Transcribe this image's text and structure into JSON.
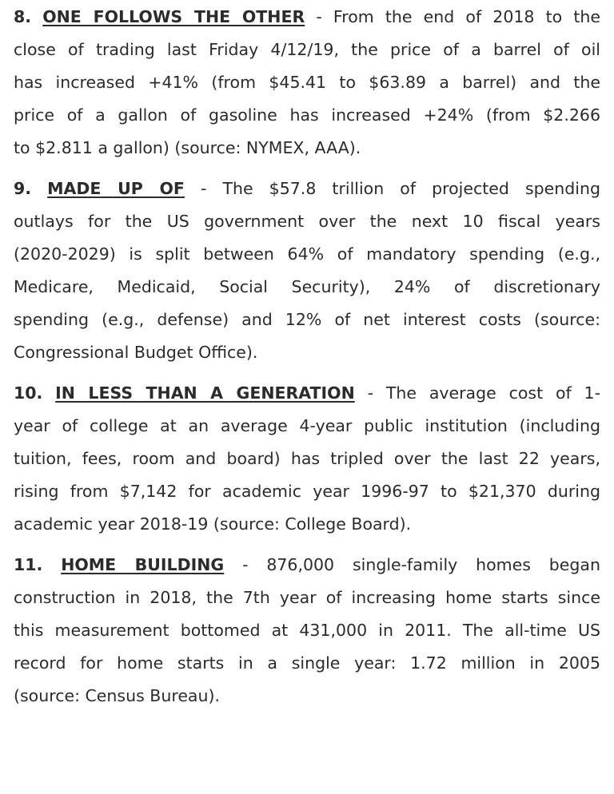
{
  "items": [
    {
      "number": "8.",
      "heading": "ONE FOLLOWS THE OTHER",
      "lead": " - From the end of 2018 to the",
      "lines": [
        "close of trading last Friday 4/12/19, the price of a barrel of oil",
        "has increased +41% (from $45.41 to $63.89 a barrel) and the",
        "price of a gallon of gasoline has increased +24% (from $2.266",
        "to $2.811 a gallon) (source: NYMEX, AAA)."
      ]
    },
    {
      "number": "9.",
      "heading": "MADE UP OF",
      "lead": " - The $57.8 trillion of projected spending",
      "lines": [
        "outlays for the US government over the next 10 fiscal years",
        "(2020-2029) is split between 64% of mandatory spending (e.g.,",
        "Medicare, Medicaid, Social Security), 24% of discretionary",
        "spending (e.g., defense) and 12% of net interest costs (source:",
        "Congressional Budget Office)."
      ]
    },
    {
      "number": "10.",
      "heading": "IN LESS THAN A GENERATION",
      "lead": " - The average cost of 1-",
      "lines": [
        "year of college at an average 4-year public institution (including",
        "tuition, fees, room and board) has tripled over the last 22 years,",
        "rising from $7,142 for academic year 1996-97 to $21,370 during",
        "academic year 2018-19 (source: College Board)."
      ]
    },
    {
      "number": "11.",
      "heading": "HOME BUILDING",
      "lead": " - 876,000 single-family homes began",
      "lines": [
        "construction in 2018, the 7th year of increasing home starts since",
        "this measurement bottomed at 431,000 in 2011. The all-time US",
        "record for home starts in a single year: 1.72 million in 2005",
        "(source: Census Bureau)."
      ]
    }
  ]
}
